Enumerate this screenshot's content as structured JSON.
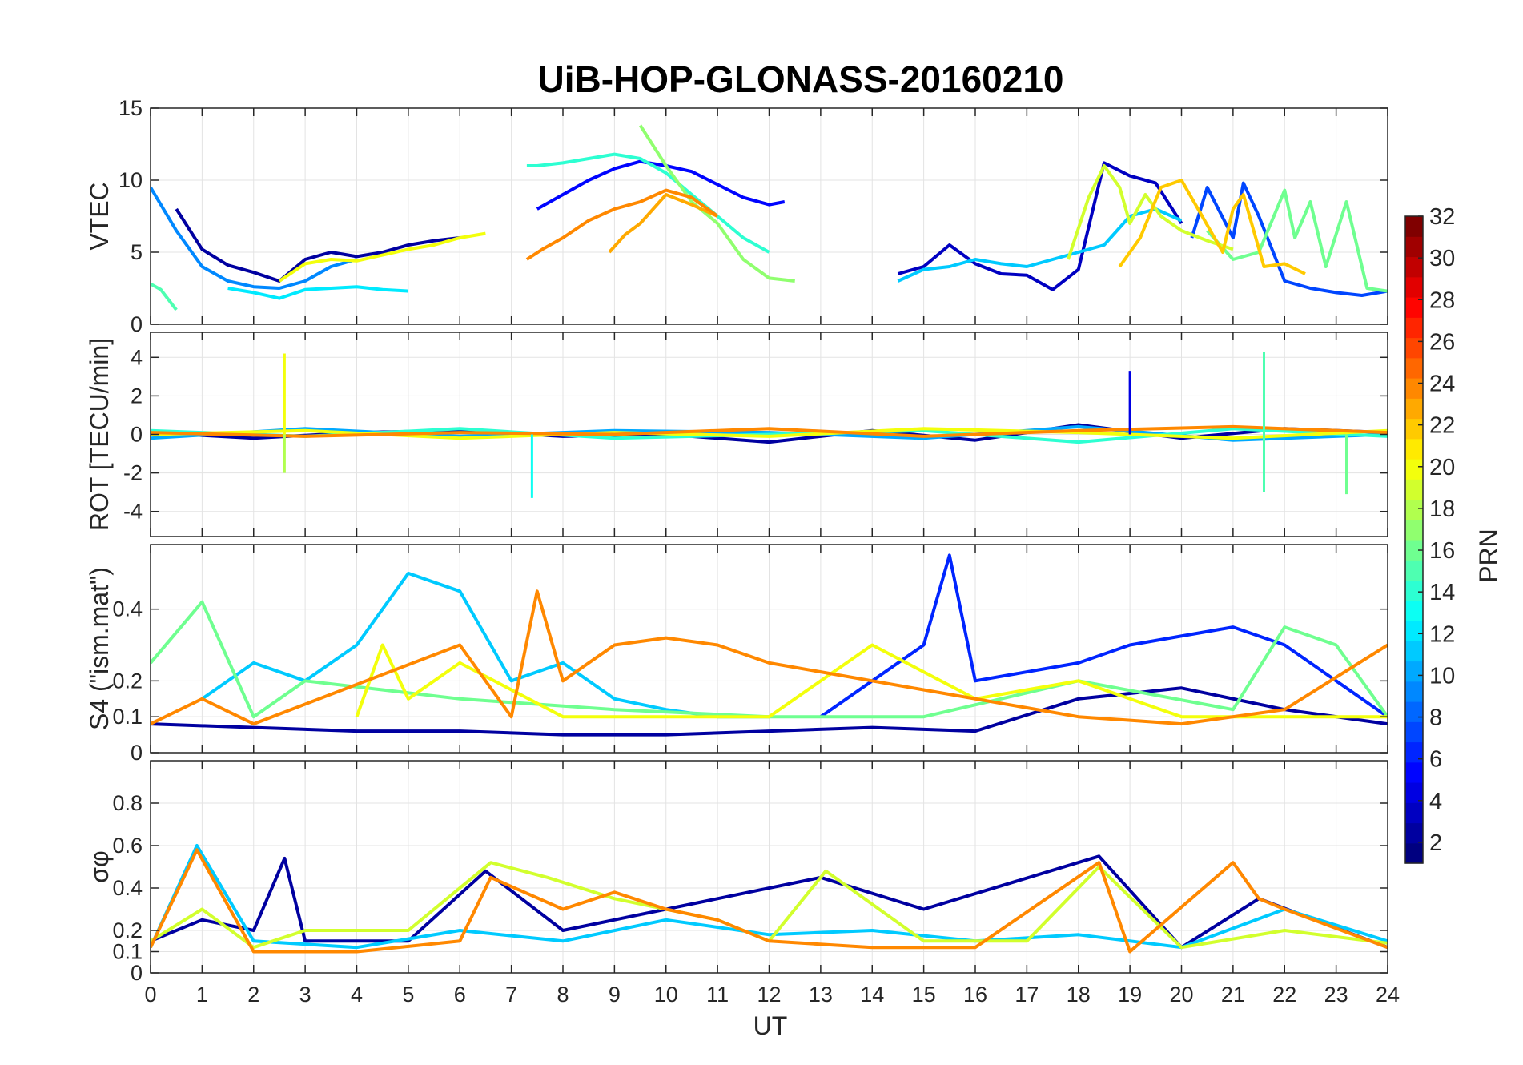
{
  "title": "UiB-HOP-GLONASS-20160210",
  "x_axis": {
    "label": "UT",
    "range": [
      0,
      24
    ],
    "ticks": [
      "0",
      "1",
      "2",
      "3",
      "4",
      "5",
      "6",
      "7",
      "8",
      "9",
      "10",
      "11",
      "12",
      "13",
      "14",
      "15",
      "16",
      "17",
      "18",
      "19",
      "20",
      "21",
      "22",
      "23",
      "24"
    ]
  },
  "colorbar": {
    "label": "PRN",
    "range": [
      1,
      32
    ],
    "colormap": "jet",
    "ticks": [
      "2",
      "4",
      "6",
      "8",
      "10",
      "12",
      "14",
      "16",
      "18",
      "20",
      "22",
      "24",
      "26",
      "28",
      "30",
      "32"
    ]
  },
  "chart_data": [
    {
      "type": "line",
      "panel": "VTEC",
      "ylabel": "VTEC",
      "ylim": [
        0,
        15
      ],
      "yticks": [
        "0",
        "5",
        "10",
        "15"
      ],
      "grid": true,
      "series": [
        {
          "prn": 2,
          "x": [
            0.5,
            1,
            1.5,
            2,
            2.5,
            3,
            3.5,
            4,
            4.5,
            5,
            5.5,
            6
          ],
          "y": [
            8,
            5.2,
            4.1,
            3.6,
            3.0,
            4.5,
            5.0,
            4.7,
            5.0,
            5.5,
            5.8,
            6.0
          ]
        },
        {
          "prn": 5,
          "x": [
            7.5,
            8,
            8.5,
            9,
            9.5,
            10,
            10.5,
            11,
            11.5,
            12,
            12.3
          ],
          "y": [
            8,
            9,
            10,
            10.8,
            11.3,
            11.0,
            10.6,
            9.7,
            8.8,
            8.3,
            8.5
          ]
        },
        {
          "prn": 9,
          "x": [
            0,
            0.5,
            1,
            1.5,
            2,
            2.5,
            3,
            3.5,
            4
          ],
          "y": [
            9.5,
            6.5,
            4.0,
            3.0,
            2.6,
            2.5,
            3.0,
            4.0,
            4.5
          ]
        },
        {
          "prn": 12,
          "x": [
            1.5,
            2,
            2.5,
            3,
            3.5,
            4,
            4.5,
            5
          ],
          "y": [
            2.5,
            2.2,
            1.8,
            2.4,
            2.5,
            2.6,
            2.4,
            2.3
          ]
        },
        {
          "prn": 14,
          "x": [
            7.3,
            7.5,
            8,
            8.5,
            9,
            9.5,
            10,
            10.5,
            11,
            11.5,
            12
          ],
          "y": [
            11,
            11,
            11.2,
            11.5,
            11.8,
            11.5,
            10.5,
            9,
            7.5,
            6,
            5
          ]
        },
        {
          "prn": 15,
          "x": [
            0,
            0.2,
            0.5
          ],
          "y": [
            2.8,
            2.4,
            1.0
          ]
        },
        {
          "prn": 17,
          "x": [
            9.5,
            10,
            10.5,
            11,
            11.5,
            12,
            12.5
          ],
          "y": [
            13.8,
            11,
            8.5,
            7.0,
            4.5,
            3.2,
            3.0
          ]
        },
        {
          "prn": 20,
          "x": [
            2.5,
            3,
            3.5,
            4,
            4.5,
            5,
            5.5,
            6,
            6.5
          ],
          "y": [
            3.0,
            4.2,
            4.5,
            4.4,
            4.8,
            5.2,
            5.5,
            6.0,
            6.3
          ]
        },
        {
          "prn": 23,
          "x": [
            8.9,
            9.2,
            9.5,
            9.8,
            10,
            10.5,
            11
          ],
          "y": [
            5.0,
            6.2,
            7.0,
            8.2,
            9.0,
            8.3,
            7.5
          ]
        },
        {
          "prn": 24,
          "x": [
            7.3,
            7.6,
            8,
            8.5,
            9,
            9.5,
            10,
            10.5,
            11
          ],
          "y": [
            4.5,
            5.2,
            6.0,
            7.2,
            8.0,
            8.5,
            9.3,
            8.8,
            7.5
          ]
        },
        {
          "prn": 3,
          "x": [
            14.5,
            15,
            15.5,
            16,
            16.5,
            17,
            17.5,
            18,
            18.5,
            19,
            19.5,
            20
          ],
          "y": [
            3.5,
            4.0,
            5.5,
            4.2,
            3.5,
            3.4,
            2.4,
            3.8,
            11.2,
            10.3,
            9.8,
            7.0
          ]
        },
        {
          "prn": 7,
          "x": [
            20.2,
            20.5,
            21,
            21.2,
            21.5,
            22,
            22.5,
            23,
            23.5,
            24
          ],
          "y": [
            6.0,
            9.5,
            6.0,
            9.8,
            7.5,
            3.0,
            2.5,
            2.2,
            2.0,
            2.3
          ]
        },
        {
          "prn": 11,
          "x": [
            14.5,
            15,
            15.5,
            16,
            16.5,
            17,
            17.5,
            18,
            18.5,
            19,
            19.5,
            20
          ],
          "y": [
            3.0,
            3.8,
            4.0,
            4.5,
            4.2,
            4.0,
            4.5,
            5.0,
            5.5,
            7.5,
            8.0,
            7.2
          ]
        },
        {
          "prn": 16,
          "x": [
            20.5,
            21,
            21.5,
            22,
            22.2,
            22.5,
            22.8,
            23.2,
            23.6,
            24
          ],
          "y": [
            6.5,
            4.5,
            5.0,
            9.3,
            6.0,
            8.5,
            4.0,
            8.5,
            2.5,
            2.3
          ]
        },
        {
          "prn": 19,
          "x": [
            17.8,
            18.2,
            18.5,
            18.8,
            19,
            19.3,
            19.6,
            20,
            20.5,
            21
          ],
          "y": [
            4.5,
            8.8,
            11.0,
            9.5,
            7.0,
            9.0,
            7.5,
            6.5,
            5.8,
            5.2
          ]
        },
        {
          "prn": 22,
          "x": [
            18.8,
            19.2,
            19.6,
            20,
            20.4,
            20.8,
            21,
            21.2,
            21.6,
            22,
            22.4
          ],
          "y": [
            4.0,
            6.0,
            9.5,
            10.0,
            7.5,
            5.0,
            8.0,
            9.0,
            4.0,
            4.2,
            3.5
          ]
        }
      ]
    },
    {
      "type": "line",
      "panel": "ROT",
      "ylabel": "ROT [TECU/min]",
      "ylim": [
        -5.3,
        5.3
      ],
      "yticks": [
        "-4",
        "-2",
        "0",
        "2",
        "4"
      ],
      "grid": true,
      "annotations": [
        {
          "x": 2.6,
          "y": 4.2,
          "prn": 20
        },
        {
          "x": 2.6,
          "y": -2.0,
          "prn": 18
        },
        {
          "x": 7.4,
          "y": -3.3,
          "prn": 13
        },
        {
          "x": 19.0,
          "y": 3.3,
          "prn": 4
        },
        {
          "x": 21.6,
          "y": 4.3,
          "prn": 15
        },
        {
          "x": 21.6,
          "y": -3.0,
          "prn": 15
        },
        {
          "x": 23.2,
          "y": -3.1,
          "prn": 16
        }
      ],
      "series": [
        {
          "prn": 2,
          "x": [
            0,
            2,
            4,
            6,
            8,
            10,
            12,
            14,
            16,
            18,
            20,
            22,
            24
          ],
          "y": [
            0.1,
            -0.2,
            0.1,
            0.2,
            -0.1,
            0.0,
            -0.4,
            0.2,
            -0.3,
            0.5,
            -0.2,
            0.3,
            0.1
          ]
        },
        {
          "prn": 10,
          "x": [
            0,
            3,
            6,
            9,
            12,
            15,
            18,
            21,
            24
          ],
          "y": [
            -0.2,
            0.3,
            -0.1,
            0.2,
            0.1,
            -0.2,
            0.4,
            -0.3,
            0.0
          ]
        },
        {
          "prn": 14,
          "x": [
            0,
            3,
            6,
            9,
            12,
            15,
            18,
            21,
            24
          ],
          "y": [
            0.2,
            -0.1,
            0.3,
            -0.2,
            0.0,
            0.2,
            -0.4,
            0.3,
            -0.1
          ]
        },
        {
          "prn": 20,
          "x": [
            0,
            3,
            6,
            9,
            12,
            15,
            18,
            21,
            24
          ],
          "y": [
            0.0,
            0.2,
            -0.2,
            0.1,
            -0.1,
            0.3,
            0.1,
            -0.2,
            0.2
          ]
        },
        {
          "prn": 24,
          "x": [
            0,
            3,
            6,
            9,
            12,
            15,
            18,
            21,
            24
          ],
          "y": [
            0.1,
            -0.1,
            0.1,
            0.0,
            0.3,
            -0.1,
            0.2,
            0.4,
            0.1
          ]
        }
      ]
    },
    {
      "type": "line",
      "panel": "S4",
      "ylabel": "S4 (\"ism.mat\")",
      "ylim": [
        0,
        0.58
      ],
      "yticks": [
        "0",
        "0.1",
        "0.2",
        "0.4"
      ],
      "grid": true,
      "series": [
        {
          "prn": 2,
          "x": [
            0,
            2,
            4,
            6,
            8,
            10,
            12,
            14,
            16,
            18,
            20,
            22,
            24
          ],
          "y": [
            0.08,
            0.07,
            0.06,
            0.06,
            0.05,
            0.05,
            0.06,
            0.07,
            0.06,
            0.15,
            0.18,
            0.12,
            0.08
          ]
        },
        {
          "prn": 6,
          "x": [
            13,
            14,
            15,
            15.5,
            16,
            18,
            19,
            21,
            22,
            23,
            24
          ],
          "y": [
            0.1,
            0.2,
            0.3,
            0.55,
            0.2,
            0.25,
            0.3,
            0.35,
            0.3,
            0.2,
            0.1
          ]
        },
        {
          "prn": 11,
          "x": [
            1,
            2,
            3,
            4,
            5,
            6,
            7,
            8,
            9,
            10,
            11,
            12
          ],
          "y": [
            0.15,
            0.25,
            0.2,
            0.3,
            0.5,
            0.45,
            0.2,
            0.25,
            0.15,
            0.12,
            0.1,
            0.1
          ]
        },
        {
          "prn": 16,
          "x": [
            0,
            1,
            2,
            3,
            6,
            9,
            12,
            15,
            18,
            21,
            22,
            23,
            24
          ],
          "y": [
            0.25,
            0.42,
            0.1,
            0.2,
            0.15,
            0.12,
            0.1,
            0.1,
            0.2,
            0.12,
            0.35,
            0.3,
            0.1
          ]
        },
        {
          "prn": 20,
          "x": [
            4,
            4.5,
            5,
            6,
            8,
            12,
            14,
            16,
            18,
            20,
            24
          ],
          "y": [
            0.1,
            0.3,
            0.15,
            0.25,
            0.1,
            0.1,
            0.3,
            0.15,
            0.2,
            0.1,
            0.1
          ]
        },
        {
          "prn": 24,
          "x": [
            0,
            1,
            2,
            6,
            7,
            7.5,
            8,
            9,
            10,
            11,
            12,
            18,
            20,
            22,
            24
          ],
          "y": [
            0.08,
            0.15,
            0.08,
            0.3,
            0.1,
            0.45,
            0.2,
            0.3,
            0.32,
            0.3,
            0.25,
            0.1,
            0.08,
            0.12,
            0.3
          ]
        }
      ]
    },
    {
      "type": "line",
      "panel": "sigma_phi",
      "ylabel": "σφ",
      "ylim": [
        0,
        1
      ],
      "yticks": [
        "0",
        "0.1",
        "0.2",
        "0.4",
        "0.6",
        "0.8"
      ],
      "grid": true,
      "series": [
        {
          "prn": 2,
          "x": [
            0,
            1,
            2,
            2.6,
            3,
            5,
            6.5,
            8,
            10,
            13,
            15,
            18.4,
            20,
            21.5,
            24
          ],
          "y": [
            0.15,
            0.25,
            0.2,
            0.54,
            0.15,
            0.15,
            0.48,
            0.2,
            0.3,
            0.45,
            0.3,
            0.55,
            0.12,
            0.35,
            0.12
          ]
        },
        {
          "prn": 11,
          "x": [
            0,
            0.9,
            2,
            4,
            6,
            8,
            10,
            12,
            14,
            16,
            18,
            20,
            22,
            24
          ],
          "y": [
            0.12,
            0.6,
            0.15,
            0.12,
            0.2,
            0.15,
            0.25,
            0.18,
            0.2,
            0.15,
            0.18,
            0.12,
            0.3,
            0.15
          ]
        },
        {
          "prn": 19,
          "x": [
            0,
            1,
            2,
            3,
            5,
            6.6,
            7.7,
            9,
            11,
            12,
            13.1,
            15,
            17,
            18.4,
            20,
            22,
            24
          ],
          "y": [
            0.15,
            0.3,
            0.12,
            0.2,
            0.2,
            0.52,
            0.45,
            0.35,
            0.25,
            0.15,
            0.48,
            0.15,
            0.15,
            0.5,
            0.12,
            0.2,
            0.14
          ]
        },
        {
          "prn": 24,
          "x": [
            0,
            0.9,
            2,
            4,
            6,
            6.6,
            8,
            9,
            10,
            11,
            12,
            14,
            16,
            18.4,
            19,
            21,
            21.5,
            22,
            24
          ],
          "y": [
            0.12,
            0.58,
            0.1,
            0.1,
            0.15,
            0.45,
            0.3,
            0.38,
            0.3,
            0.25,
            0.15,
            0.12,
            0.12,
            0.52,
            0.1,
            0.52,
            0.35,
            0.3,
            0.12
          ]
        }
      ]
    }
  ]
}
